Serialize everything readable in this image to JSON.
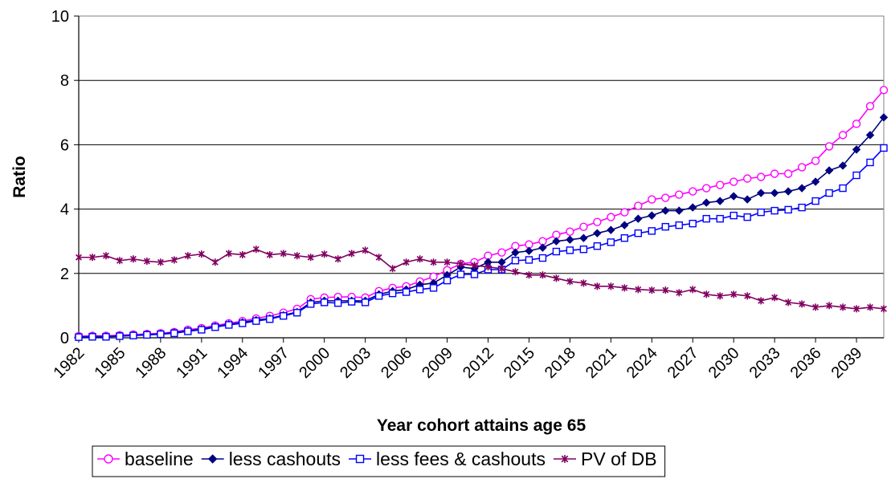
{
  "chart_data": {
    "type": "line",
    "xlabel": "Year cohort attains age 65",
    "ylabel": "Ratio",
    "ylim": [
      0,
      10
    ],
    "xlim": [
      1982,
      2041
    ],
    "y_ticks": [
      0,
      2,
      4,
      6,
      8,
      10
    ],
    "x_ticks": [
      1982,
      1985,
      1988,
      1991,
      1994,
      1997,
      2000,
      2003,
      2006,
      2009,
      2012,
      2015,
      2018,
      2021,
      2024,
      2027,
      2030,
      2033,
      2036,
      2039
    ],
    "grid": "horizontal",
    "legend_position": "bottom",
    "x": [
      1982,
      1983,
      1984,
      1985,
      1986,
      1987,
      1988,
      1989,
      1990,
      1991,
      1992,
      1993,
      1994,
      1995,
      1996,
      1997,
      1998,
      1999,
      2000,
      2001,
      2002,
      2003,
      2004,
      2005,
      2006,
      2007,
      2008,
      2009,
      2010,
      2011,
      2012,
      2013,
      2014,
      2015,
      2016,
      2017,
      2018,
      2019,
      2020,
      2021,
      2022,
      2023,
      2024,
      2025,
      2026,
      2027,
      2028,
      2029,
      2030,
      2031,
      2032,
      2033,
      2034,
      2035,
      2036,
      2037,
      2038,
      2039,
      2040,
      2041
    ],
    "series": [
      {
        "name": "baseline",
        "color": "#FF00FF",
        "marker": "circle-open",
        "values": [
          0.05,
          0.06,
          0.06,
          0.08,
          0.1,
          0.12,
          0.14,
          0.18,
          0.25,
          0.3,
          0.38,
          0.45,
          0.52,
          0.6,
          0.68,
          0.78,
          0.9,
          1.2,
          1.25,
          1.27,
          1.27,
          1.25,
          1.45,
          1.55,
          1.6,
          1.75,
          1.9,
          2.1,
          2.3,
          2.35,
          2.55,
          2.65,
          2.85,
          2.9,
          3.0,
          3.2,
          3.3,
          3.45,
          3.6,
          3.75,
          3.9,
          4.1,
          4.3,
          4.35,
          4.45,
          4.55,
          4.65,
          4.75,
          4.85,
          4.95,
          5.0,
          5.1,
          5.1,
          5.3,
          5.5,
          5.95,
          6.3,
          6.65,
          7.2,
          7.7
        ]
      },
      {
        "name": "less cashouts",
        "color": "#000080",
        "marker": "diamond-filled",
        "values": [
          0.03,
          0.04,
          0.04,
          0.06,
          0.08,
          0.1,
          0.12,
          0.16,
          0.22,
          0.27,
          0.35,
          0.42,
          0.48,
          0.55,
          0.6,
          0.7,
          0.8,
          1.1,
          1.15,
          1.15,
          1.15,
          1.15,
          1.35,
          1.45,
          1.5,
          1.65,
          1.7,
          1.95,
          2.2,
          2.15,
          2.35,
          2.35,
          2.65,
          2.7,
          2.8,
          3.0,
          3.05,
          3.1,
          3.25,
          3.35,
          3.5,
          3.7,
          3.8,
          3.95,
          3.95,
          4.05,
          4.2,
          4.25,
          4.4,
          4.3,
          4.5,
          4.5,
          4.55,
          4.65,
          4.85,
          5.2,
          5.35,
          5.85,
          6.3,
          6.85
        ]
      },
      {
        "name": "less fees & cashouts",
        "color": "#0000FF",
        "marker": "square-open",
        "values": [
          0.02,
          0.03,
          0.03,
          0.05,
          0.07,
          0.09,
          0.11,
          0.14,
          0.2,
          0.25,
          0.33,
          0.4,
          0.45,
          0.52,
          0.58,
          0.68,
          0.78,
          1.05,
          1.1,
          1.08,
          1.12,
          1.1,
          1.3,
          1.38,
          1.42,
          1.5,
          1.55,
          1.78,
          1.97,
          1.97,
          2.12,
          2.12,
          2.4,
          2.42,
          2.48,
          2.68,
          2.72,
          2.75,
          2.85,
          2.97,
          3.1,
          3.25,
          3.32,
          3.45,
          3.5,
          3.55,
          3.7,
          3.7,
          3.8,
          3.75,
          3.9,
          3.95,
          3.98,
          4.05,
          4.25,
          4.5,
          4.65,
          5.05,
          5.45,
          5.9
        ]
      },
      {
        "name": "PV of DB",
        "color": "#800060",
        "marker": "asterisk",
        "values": [
          2.5,
          2.5,
          2.55,
          2.4,
          2.45,
          2.38,
          2.35,
          2.42,
          2.55,
          2.6,
          2.35,
          2.62,
          2.58,
          2.75,
          2.58,
          2.62,
          2.55,
          2.5,
          2.6,
          2.45,
          2.62,
          2.72,
          2.5,
          2.15,
          2.35,
          2.45,
          2.35,
          2.35,
          2.3,
          2.25,
          2.2,
          2.15,
          2.05,
          1.95,
          1.95,
          1.85,
          1.75,
          1.7,
          1.6,
          1.6,
          1.55,
          1.5,
          1.48,
          1.48,
          1.4,
          1.5,
          1.35,
          1.3,
          1.35,
          1.3,
          1.15,
          1.25,
          1.1,
          1.05,
          0.95,
          1.0,
          0.95,
          0.9,
          0.95,
          0.9
        ]
      }
    ]
  }
}
